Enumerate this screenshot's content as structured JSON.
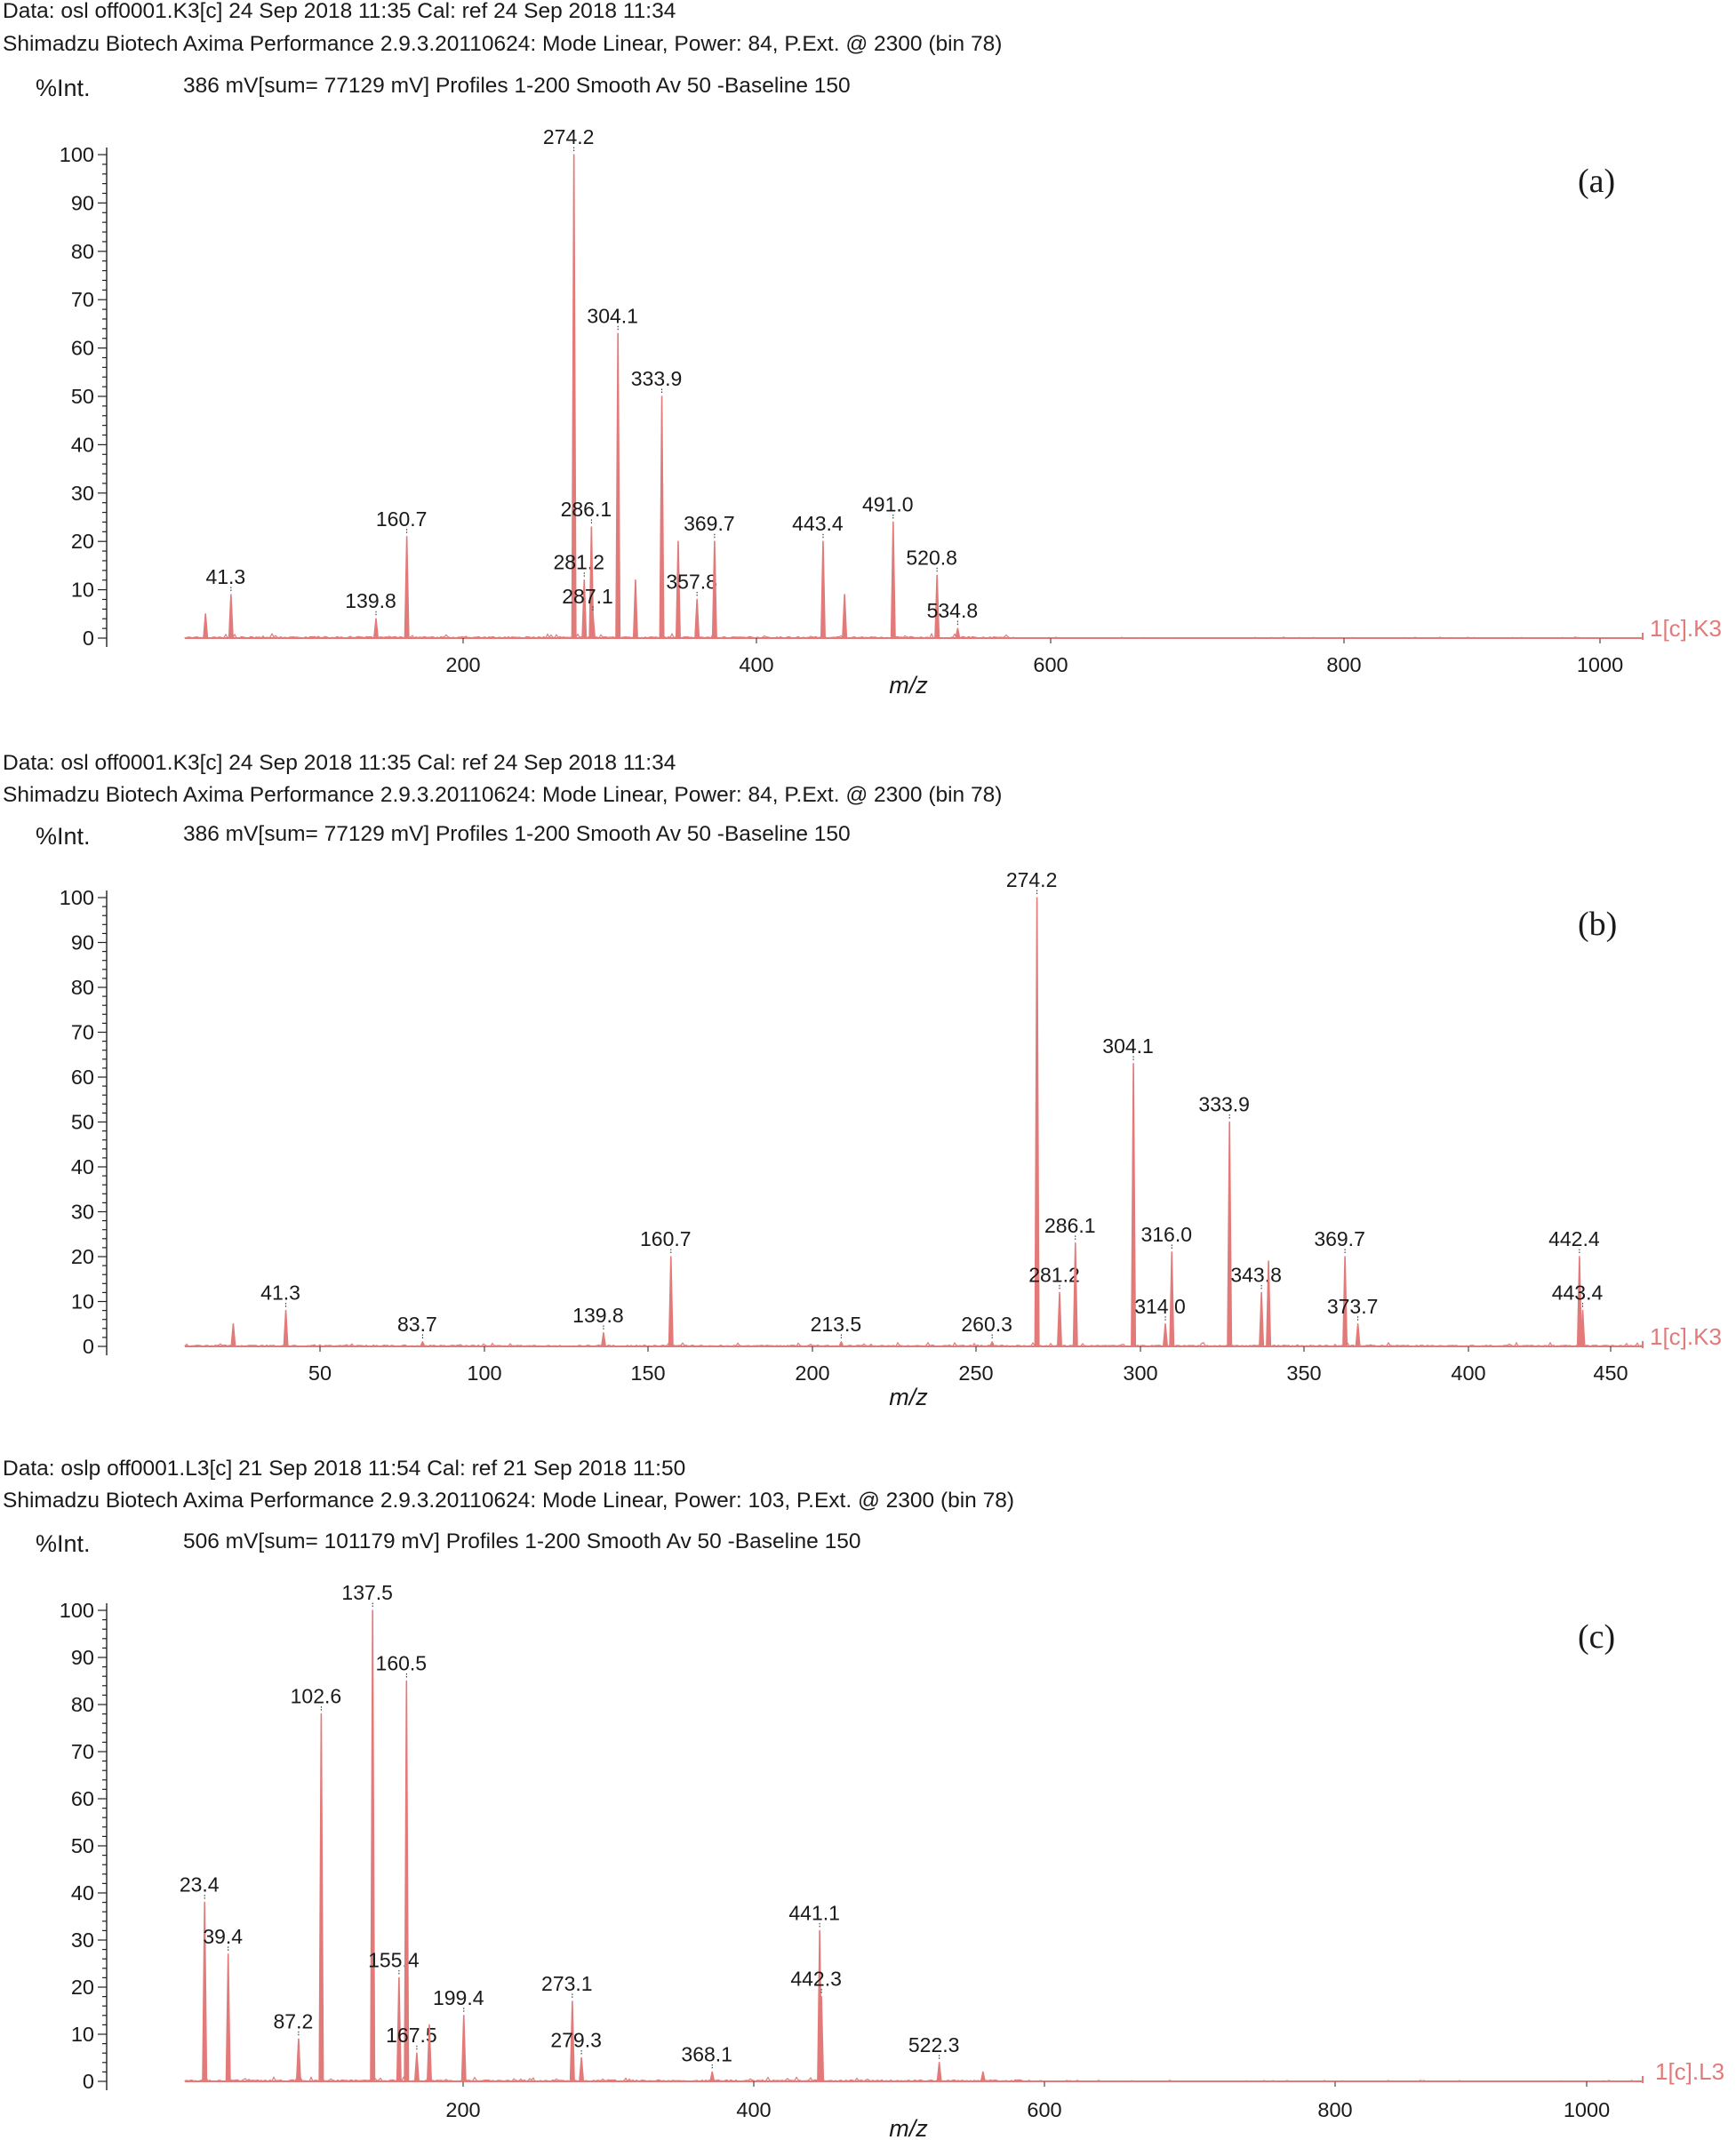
{
  "colors": {
    "trace": "#e37a7a",
    "axis": "#222222",
    "text": "#1a1a1a"
  },
  "chart_data": [
    {
      "type": "line",
      "header_line1": "Data: osl off0001.K3[c] 24 Sep 2018 11:35 Cal: ref 24 Sep 2018 11:34",
      "header_line2": "Shimadzu Biotech Axima Performance 2.9.3.20110624: Mode Linear, Power: 84, P.Ext. @ 2300 (bin 78)",
      "ylabel": "%Int.",
      "scan_info": "386 mV[sum= 77129 mV]  Profiles 1-200 Smooth Av 50 -Baseline 150",
      "panel_label": "(a)",
      "trace_label": "1[c].K3",
      "xlabel": "m/z",
      "xlim": [
        10,
        1000
      ],
      "ylim": [
        0,
        100
      ],
      "xticks": [
        "200",
        "400",
        "600",
        "800",
        "1000"
      ],
      "yticks": [
        "0",
        "10",
        "20",
        "30",
        "40",
        "50",
        "60",
        "70",
        "80",
        "90",
        "100"
      ],
      "peaks": [
        {
          "x": 24.0,
          "y": 5.0
        },
        {
          "x": 41.3,
          "y": 9.0,
          "label": "41.3"
        },
        {
          "x": 139.8,
          "y": 4.0,
          "label": "139.8"
        },
        {
          "x": 160.7,
          "y": 21.0,
          "label": "160.7"
        },
        {
          "x": 274.2,
          "y": 100.0,
          "label": "274.2"
        },
        {
          "x": 281.2,
          "y": 12.0,
          "label": "281.2"
        },
        {
          "x": 286.1,
          "y": 23.0,
          "label": "286.1"
        },
        {
          "x": 287.1,
          "y": 5.0,
          "label": "287.1"
        },
        {
          "x": 304.1,
          "y": 63.0,
          "label": "304.1"
        },
        {
          "x": 316.0,
          "y": 12.0
        },
        {
          "x": 333.9,
          "y": 50.0,
          "label": "333.9"
        },
        {
          "x": 345.0,
          "y": 20.0
        },
        {
          "x": 357.8,
          "y": 8.0,
          "label": "357.8"
        },
        {
          "x": 369.7,
          "y": 20.0,
          "label": "369.7"
        },
        {
          "x": 443.4,
          "y": 20.0,
          "label": "443.4"
        },
        {
          "x": 458.0,
          "y": 9.0
        },
        {
          "x": 491.0,
          "y": 24.0,
          "label": "491.0"
        },
        {
          "x": 520.8,
          "y": 13.0,
          "label": "520.8"
        },
        {
          "x": 534.8,
          "y": 2.0,
          "label": "534.8"
        }
      ]
    },
    {
      "type": "line",
      "header_line1": "Data: osl off0001.K3[c] 24 Sep 2018 11:35 Cal: ref 24 Sep 2018 11:34",
      "header_line2": "Shimadzu Biotech Axima Performance 2.9.3.20110624: Mode Linear, Power: 84, P.Ext. @ 2300 (bin 78)",
      "ylabel": "%Int.",
      "scan_info": "386 mV[sum= 77129 mV]  Profiles 1-200 Smooth Av 50 -Baseline 150",
      "panel_label": "(b)",
      "trace_label": "1[c].K3",
      "xlabel": "m/z",
      "xlim": [
        10,
        462
      ],
      "ylim": [
        0,
        100
      ],
      "xticks": [
        "50",
        "100",
        "150",
        "200",
        "250",
        "300",
        "350",
        "400",
        "450"
      ],
      "yticks": [
        "0",
        "10",
        "20",
        "30",
        "40",
        "50",
        "60",
        "70",
        "80",
        "90",
        "100"
      ],
      "peaks": [
        {
          "x": 25.0,
          "y": 5.0
        },
        {
          "x": 41.3,
          "y": 8.0,
          "label": "41.3"
        },
        {
          "x": 83.7,
          "y": 1.0,
          "label": "83.7"
        },
        {
          "x": 139.8,
          "y": 3.0,
          "label": "139.8"
        },
        {
          "x": 160.7,
          "y": 20.0,
          "label": "160.7"
        },
        {
          "x": 213.5,
          "y": 1.0,
          "label": "213.5"
        },
        {
          "x": 260.3,
          "y": 1.0,
          "label": "260.3"
        },
        {
          "x": 274.2,
          "y": 100.0,
          "label": "274.2"
        },
        {
          "x": 281.2,
          "y": 12.0,
          "label": "281.2"
        },
        {
          "x": 286.1,
          "y": 23.0,
          "label": "286.1"
        },
        {
          "x": 304.1,
          "y": 63.0,
          "label": "304.1"
        },
        {
          "x": 314.0,
          "y": 5.0,
          "label": "314.0"
        },
        {
          "x": 316.0,
          "y": 21.0,
          "label": "316.0"
        },
        {
          "x": 333.9,
          "y": 50.0,
          "label": "333.9"
        },
        {
          "x": 343.8,
          "y": 12.0,
          "label": "343.8"
        },
        {
          "x": 346.0,
          "y": 19.0
        },
        {
          "x": 369.7,
          "y": 20.0,
          "label": "369.7"
        },
        {
          "x": 373.7,
          "y": 5.0,
          "label": "373.7"
        },
        {
          "x": 442.4,
          "y": 20.0,
          "label": "442.4"
        },
        {
          "x": 443.4,
          "y": 8.0,
          "label": "443.4"
        }
      ]
    },
    {
      "type": "line",
      "header_line1": "Data: oslp off0001.L3[c] 21 Sep 2018 11:54 Cal: ref 21 Sep 2018 11:50",
      "header_line2": "Shimadzu Biotech Axima Performance 2.9.3.20110624: Mode Linear, Power: 103, P.Ext. @ 2300 (bin 78)",
      "ylabel": "%Int.",
      "scan_info": "506 mV[sum= 101179 mV]  Profiles 1-200 Smooth Av 50 -Baseline 150",
      "panel_label": "(c)",
      "trace_label": "1[c].L3",
      "xlabel": "m/z",
      "xlim": [
        10,
        1000
      ],
      "ylim": [
        0,
        100
      ],
      "xticks": [
        "200",
        "400",
        "600",
        "800",
        "1000"
      ],
      "yticks": [
        "0",
        "10",
        "20",
        "30",
        "40",
        "50",
        "60",
        "70",
        "80",
        "90",
        "100"
      ],
      "peaks": [
        {
          "x": 23.4,
          "y": 38.0,
          "label": "23.4"
        },
        {
          "x": 39.4,
          "y": 27.0,
          "label": "39.4"
        },
        {
          "x": 87.2,
          "y": 9.0,
          "label": "87.2"
        },
        {
          "x": 102.6,
          "y": 78.0,
          "label": "102.6"
        },
        {
          "x": 137.5,
          "y": 100.0,
          "label": "137.5"
        },
        {
          "x": 155.4,
          "y": 22.0,
          "label": "155.4"
        },
        {
          "x": 160.5,
          "y": 85.0,
          "label": "160.5"
        },
        {
          "x": 167.5,
          "y": 6.0,
          "label": "167.5"
        },
        {
          "x": 176.0,
          "y": 12.0
        },
        {
          "x": 199.4,
          "y": 14.0,
          "label": "199.4"
        },
        {
          "x": 273.1,
          "y": 17.0,
          "label": "273.1"
        },
        {
          "x": 279.3,
          "y": 5.0,
          "label": "279.3"
        },
        {
          "x": 368.1,
          "y": 2.0,
          "label": "368.1"
        },
        {
          "x": 441.1,
          "y": 32.0,
          "label": "441.1"
        },
        {
          "x": 442.3,
          "y": 18.0,
          "label": "442.3"
        },
        {
          "x": 522.3,
          "y": 4.0,
          "label": "522.3"
        },
        {
          "x": 552.0,
          "y": 2.0
        }
      ]
    }
  ]
}
